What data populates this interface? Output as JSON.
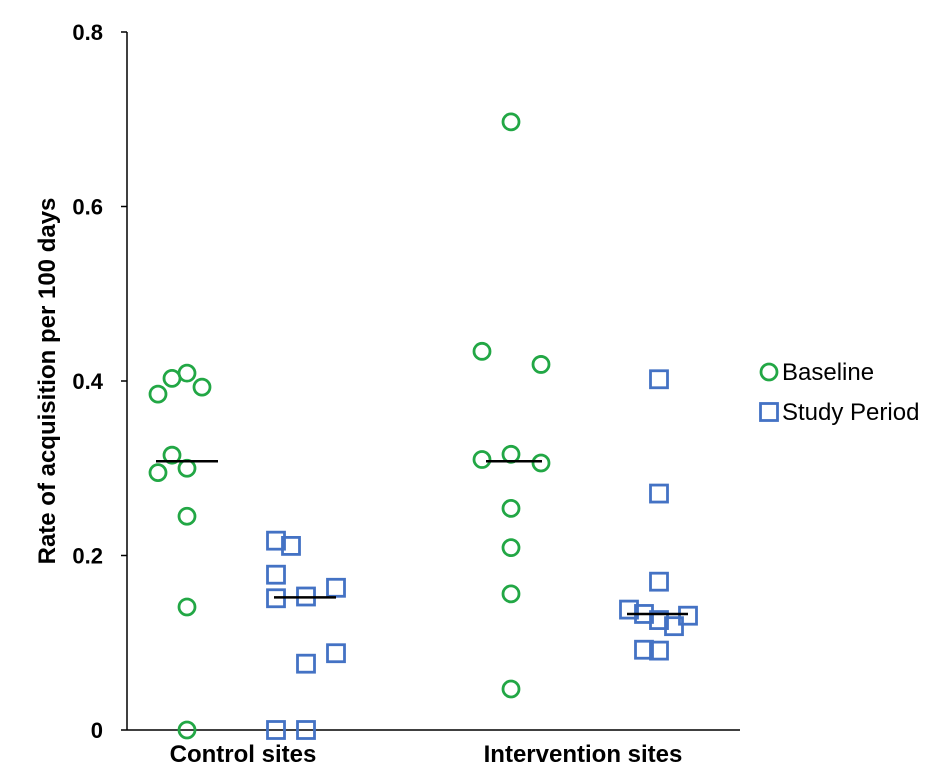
{
  "chart_data": {
    "type": "scatter",
    "title": "",
    "xlabel": "",
    "ylabel": "Rate of acquisition per 100 days",
    "ylim": [
      0,
      0.8
    ],
    "yticks": [
      {
        "value": 0,
        "label": "0"
      },
      {
        "value": 0.2,
        "label": "0.2"
      },
      {
        "value": 0.4,
        "label": "0.4"
      },
      {
        "value": 0.6,
        "label": "0.6"
      },
      {
        "value": 0.8,
        "label": "0.8"
      }
    ],
    "grid": false,
    "legend_position": "right",
    "categories": [
      "Control sites",
      "Intervention sites"
    ],
    "series": [
      {
        "name": "Baseline",
        "marker": "circle",
        "color": "#22A745",
        "groups": [
          {
            "category": "Control sites",
            "median": 0.308,
            "values": [
              0.385,
              0.403,
              0.409,
              0.393,
              0.315,
              0.295,
              0.3,
              0.245,
              0.141,
              0.0
            ]
          },
          {
            "category": "Intervention sites",
            "median": 0.308,
            "values": [
              0.697,
              0.434,
              0.419,
              0.31,
              0.316,
              0.306,
              0.254,
              0.209,
              0.156,
              0.047
            ]
          }
        ]
      },
      {
        "name": "Study Period",
        "marker": "square",
        "color": "#4472C4",
        "groups": [
          {
            "category": "Control sites",
            "median": 0.152,
            "values": [
              0.217,
              0.211,
              0.178,
              0.151,
              0.153,
              0.163,
              0.076,
              0.088,
              0.0,
              0.0
            ]
          },
          {
            "category": "Intervention sites",
            "median": 0.133,
            "values": [
              0.402,
              0.271,
              0.17,
              0.138,
              0.133,
              0.126,
              0.119,
              0.131,
              0.092,
              0.091
            ]
          }
        ]
      }
    ],
    "median_line_color": "#000000"
  }
}
